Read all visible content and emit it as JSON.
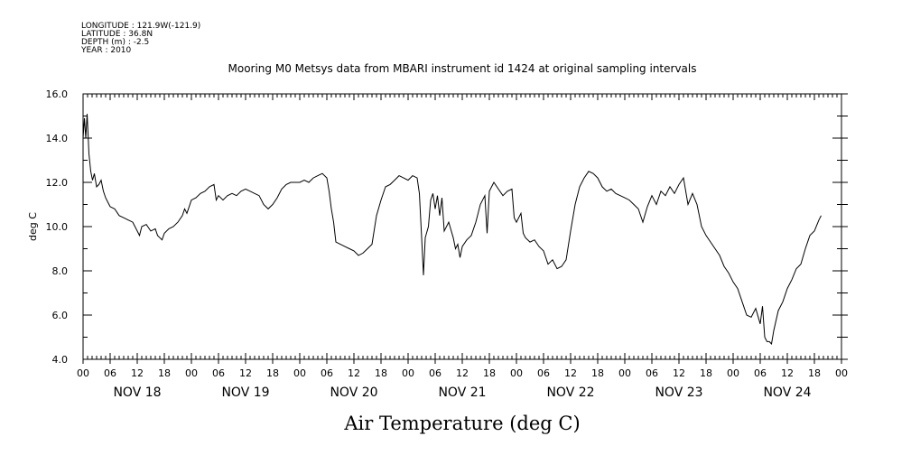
{
  "meta": {
    "longitude": "LONGITUDE : 121.9W(-121.9)",
    "latitude": "LATITUDE : 36.8N",
    "depth": "DEPTH (m) : -2.5",
    "year": "YEAR : 2010"
  },
  "chart_data": {
    "type": "line",
    "title": "Mooring M0 Metsys data from MBARI instrument id 1424 at original sampling intervals",
    "bottom_title": "Air Temperature (deg C)",
    "ylabel": "deg C",
    "ylim": [
      4.0,
      16.0
    ],
    "y_ticks": [
      "4.0",
      "6.0",
      "8.0",
      "10.0",
      "12.0",
      "14.0",
      "16.0"
    ],
    "x_range_hours": [
      0,
      168
    ],
    "x_hour_ticks": [
      "00",
      "06",
      "12",
      "18",
      "00",
      "06",
      "12",
      "18",
      "00",
      "06",
      "12",
      "18",
      "00",
      "06",
      "12",
      "18",
      "00",
      "06",
      "12",
      "18",
      "00",
      "06",
      "12",
      "18",
      "00",
      "06",
      "12",
      "18",
      "00"
    ],
    "day_labels": [
      "NOV 18",
      "NOV 19",
      "NOV 20",
      "NOV 21",
      "NOV 22",
      "NOV 23",
      "NOV 24"
    ],
    "x_unit": "hours since NOV 18 00:00",
    "series": [
      {
        "color": "#000000",
        "points": [
          [
            0.0,
            14.0
          ],
          [
            0.3,
            14.9
          ],
          [
            0.6,
            14.0
          ],
          [
            0.9,
            15.1
          ],
          [
            1.3,
            13.3
          ],
          [
            1.7,
            12.5
          ],
          [
            2.1,
            12.1
          ],
          [
            2.5,
            12.4
          ],
          [
            3.0,
            11.8
          ],
          [
            3.5,
            11.9
          ],
          [
            4.0,
            12.1
          ],
          [
            4.5,
            11.6
          ],
          [
            5.0,
            11.3
          ],
          [
            5.5,
            11.1
          ],
          [
            6.0,
            10.9
          ],
          [
            7.0,
            10.8
          ],
          [
            8.0,
            10.5
          ],
          [
            9.0,
            10.4
          ],
          [
            10.0,
            10.3
          ],
          [
            11.0,
            10.2
          ],
          [
            11.5,
            10.0
          ],
          [
            12.0,
            9.8
          ],
          [
            12.5,
            9.6
          ],
          [
            13.0,
            10.0
          ],
          [
            14.0,
            10.1
          ],
          [
            15.0,
            9.8
          ],
          [
            16.0,
            9.9
          ],
          [
            16.5,
            9.6
          ],
          [
            17.0,
            9.5
          ],
          [
            17.5,
            9.4
          ],
          [
            18.0,
            9.7
          ],
          [
            19.0,
            9.9
          ],
          [
            20.0,
            10.0
          ],
          [
            21.0,
            10.2
          ],
          [
            22.0,
            10.5
          ],
          [
            22.5,
            10.8
          ],
          [
            23.0,
            10.6
          ],
          [
            24.0,
            11.2
          ],
          [
            25.0,
            11.3
          ],
          [
            26.0,
            11.5
          ],
          [
            27.0,
            11.6
          ],
          [
            28.0,
            11.8
          ],
          [
            29.0,
            11.9
          ],
          [
            29.5,
            11.2
          ],
          [
            30.0,
            11.4
          ],
          [
            31.0,
            11.2
          ],
          [
            32.0,
            11.4
          ],
          [
            33.0,
            11.5
          ],
          [
            34.0,
            11.4
          ],
          [
            35.0,
            11.6
          ],
          [
            36.0,
            11.7
          ],
          [
            37.0,
            11.6
          ],
          [
            38.0,
            11.5
          ],
          [
            39.0,
            11.4
          ],
          [
            40.0,
            11.0
          ],
          [
            41.0,
            10.8
          ],
          [
            42.0,
            11.0
          ],
          [
            43.0,
            11.3
          ],
          [
            44.0,
            11.7
          ],
          [
            45.0,
            11.9
          ],
          [
            46.0,
            12.0
          ],
          [
            47.0,
            12.0
          ],
          [
            48.0,
            12.0
          ],
          [
            49.0,
            12.1
          ],
          [
            50.0,
            12.0
          ],
          [
            51.0,
            12.2
          ],
          [
            52.0,
            12.3
          ],
          [
            53.0,
            12.4
          ],
          [
            54.0,
            12.2
          ],
          [
            54.5,
            11.6
          ],
          [
            55.0,
            10.8
          ],
          [
            55.5,
            10.2
          ],
          [
            56.0,
            9.3
          ],
          [
            57.0,
            9.2
          ],
          [
            58.0,
            9.1
          ],
          [
            59.0,
            9.0
          ],
          [
            60.0,
            8.9
          ],
          [
            61.0,
            8.7
          ],
          [
            62.0,
            8.8
          ],
          [
            63.0,
            9.0
          ],
          [
            64.0,
            9.2
          ],
          [
            65.0,
            10.5
          ],
          [
            66.0,
            11.2
          ],
          [
            67.0,
            11.8
          ],
          [
            68.0,
            11.9
          ],
          [
            69.0,
            12.1
          ],
          [
            70.0,
            12.3
          ],
          [
            71.0,
            12.2
          ],
          [
            72.0,
            12.1
          ],
          [
            73.0,
            12.3
          ],
          [
            74.0,
            12.2
          ],
          [
            74.5,
            11.5
          ],
          [
            75.0,
            9.5
          ],
          [
            75.4,
            7.8
          ],
          [
            75.8,
            9.5
          ],
          [
            76.5,
            10.0
          ],
          [
            77.0,
            11.2
          ],
          [
            77.5,
            11.5
          ],
          [
            78.0,
            10.8
          ],
          [
            78.5,
            11.4
          ],
          [
            79.0,
            10.5
          ],
          [
            79.5,
            11.3
          ],
          [
            80.0,
            9.8
          ],
          [
            81.0,
            10.2
          ],
          [
            82.0,
            9.5
          ],
          [
            82.5,
            9.0
          ],
          [
            83.0,
            9.2
          ],
          [
            83.5,
            8.6
          ],
          [
            84.0,
            9.1
          ],
          [
            85.0,
            9.4
          ],
          [
            86.0,
            9.6
          ],
          [
            87.0,
            10.2
          ],
          [
            88.0,
            11.0
          ],
          [
            89.0,
            11.4
          ],
          [
            89.5,
            9.7
          ],
          [
            90.0,
            11.6
          ],
          [
            91.0,
            12.0
          ],
          [
            92.0,
            11.7
          ],
          [
            93.0,
            11.4
          ],
          [
            94.0,
            11.6
          ],
          [
            95.0,
            11.7
          ],
          [
            95.5,
            10.4
          ],
          [
            96.0,
            10.2
          ],
          [
            97.0,
            10.6
          ],
          [
            97.5,
            9.7
          ],
          [
            98.0,
            9.5
          ],
          [
            99.0,
            9.3
          ],
          [
            100.0,
            9.4
          ],
          [
            101.0,
            9.1
          ],
          [
            102.0,
            8.9
          ],
          [
            103.0,
            8.3
          ],
          [
            104.0,
            8.5
          ],
          [
            105.0,
            8.1
          ],
          [
            106.0,
            8.2
          ],
          [
            107.0,
            8.5
          ],
          [
            108.0,
            9.8
          ],
          [
            109.0,
            11.0
          ],
          [
            110.0,
            11.8
          ],
          [
            111.0,
            12.2
          ],
          [
            112.0,
            12.5
          ],
          [
            113.0,
            12.4
          ],
          [
            114.0,
            12.2
          ],
          [
            115.0,
            11.8
          ],
          [
            116.0,
            11.6
          ],
          [
            117.0,
            11.7
          ],
          [
            118.0,
            11.5
          ],
          [
            119.0,
            11.4
          ],
          [
            120.0,
            11.3
          ],
          [
            121.0,
            11.2
          ],
          [
            122.0,
            11.0
          ],
          [
            123.0,
            10.8
          ],
          [
            124.0,
            10.2
          ],
          [
            125.0,
            10.9
          ],
          [
            126.0,
            11.4
          ],
          [
            127.0,
            11.0
          ],
          [
            128.0,
            11.6
          ],
          [
            129.0,
            11.4
          ],
          [
            130.0,
            11.8
          ],
          [
            131.0,
            11.5
          ],
          [
            132.0,
            11.9
          ],
          [
            133.0,
            12.2
          ],
          [
            134.0,
            11.0
          ],
          [
            135.0,
            11.5
          ],
          [
            136.0,
            11.0
          ],
          [
            137.0,
            10.0
          ],
          [
            138.0,
            9.6
          ],
          [
            139.0,
            9.3
          ],
          [
            140.0,
            9.0
          ],
          [
            141.0,
            8.7
          ],
          [
            142.0,
            8.2
          ],
          [
            143.0,
            7.9
          ],
          [
            144.0,
            7.5
          ],
          [
            145.0,
            7.2
          ],
          [
            146.0,
            6.6
          ],
          [
            147.0,
            6.0
          ],
          [
            148.0,
            5.9
          ],
          [
            149.0,
            6.3
          ],
          [
            150.0,
            5.6
          ],
          [
            150.5,
            6.4
          ],
          [
            151.0,
            5.0
          ],
          [
            151.5,
            4.8
          ],
          [
            152.0,
            4.8
          ],
          [
            152.5,
            4.7
          ],
          [
            153.0,
            5.3
          ],
          [
            154.0,
            6.2
          ],
          [
            155.0,
            6.6
          ],
          [
            156.0,
            7.2
          ],
          [
            157.0,
            7.6
          ],
          [
            158.0,
            8.1
          ],
          [
            159.0,
            8.3
          ],
          [
            160.0,
            9.0
          ],
          [
            161.0,
            9.6
          ],
          [
            162.0,
            9.8
          ],
          [
            163.0,
            10.3
          ],
          [
            163.5,
            10.5
          ]
        ]
      }
    ]
  }
}
